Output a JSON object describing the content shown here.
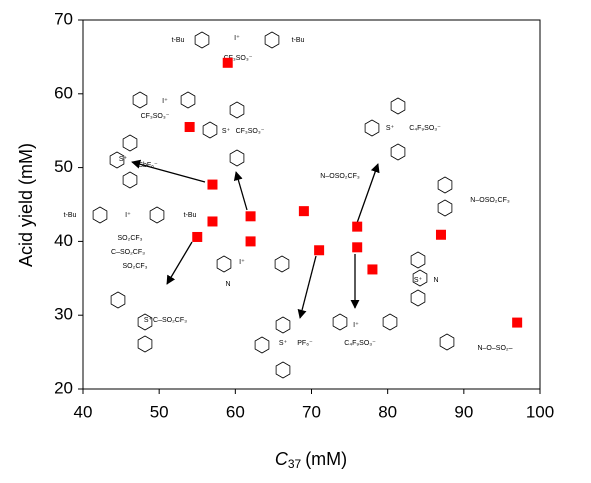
{
  "chart_data": {
    "type": "scatter",
    "xlabel_symbol": "C",
    "xlabel_subscript": "37",
    "xlabel_unit": "(mM)",
    "ylabel": "Acid yield (mM)",
    "x": [
      59,
      54,
      57,
      62,
      69,
      57,
      55,
      62,
      71,
      76,
      76,
      78,
      87,
      97
    ],
    "values": [
      64.2,
      55.5,
      47.7,
      43.4,
      44.1,
      42.7,
      40.6,
      40,
      38.8,
      42,
      39.2,
      36.2,
      40.9,
      29
    ],
    "color": "#ff0000",
    "xlim": [
      40,
      100
    ],
    "xticks": [
      40,
      50,
      60,
      70,
      80,
      90,
      100
    ],
    "ylim": [
      20,
      70
    ],
    "yticks": [
      20,
      30,
      40,
      50,
      60,
      70
    ],
    "grid": false,
    "annotations": [
      "t-Bu",
      "I⁺",
      "t-Bu",
      "CF₃SO₃⁻",
      "I⁺",
      "CF₃SO₃⁻",
      "S⁺",
      "CF₃SO₃⁻",
      "S⁺",
      "SbF₆⁻",
      "N–OSO₂CF₃",
      "t-Bu",
      "I⁺",
      "t-Bu",
      "SO₂CF₃",
      "C–SO₂CF₃",
      "SO₂CF₃",
      "S⁺",
      "C–SO₂CF₃",
      "I⁺",
      "N",
      "S⁺",
      "PF₆⁻",
      "S⁺",
      "C₄F₉SO₃⁻",
      "N–OSO₂CF₃",
      "S⁺",
      "N",
      "I⁺",
      "C₄F₉SO₃⁻",
      "N–O–SO₂–"
    ]
  }
}
